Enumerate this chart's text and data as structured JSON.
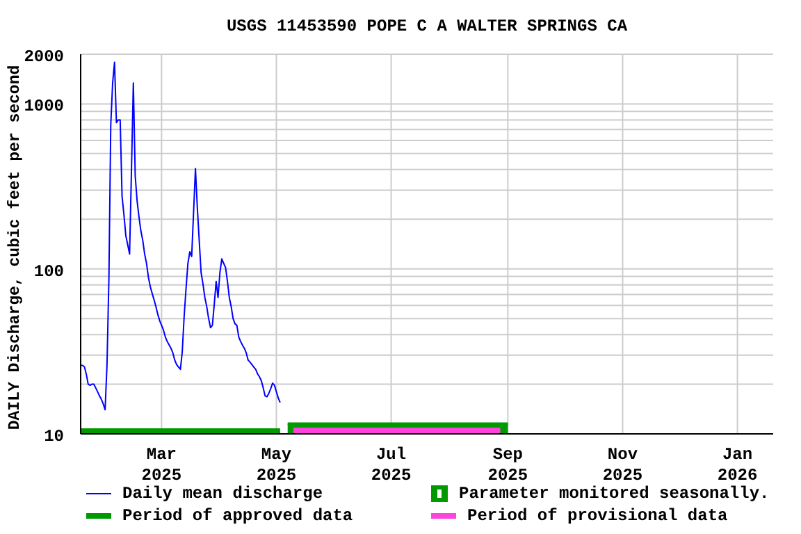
{
  "chart_data": {
    "type": "line",
    "title": "USGS 11453590 POPE C A WALTER SPRINGS CA",
    "ylabel": "DAILY Discharge, cubic feet per second",
    "log": "y",
    "grid": true,
    "legend": "bottom",
    "marker": "none",
    "xlim": [
      "2025-01-17",
      "2026-01-20"
    ],
    "xticks": [
      {
        "value": "2025-03-01",
        "label": "Mar\n2025"
      },
      {
        "value": "2025-05-01",
        "label": "May\n2025"
      },
      {
        "value": "2025-07-01",
        "label": "Jul\n2025"
      },
      {
        "value": "2025-09-01",
        "label": "Sep\n2025"
      },
      {
        "value": "2025-11-01",
        "label": "Nov\n2025"
      },
      {
        "value": "2026-01-01",
        "label": "Jan\n2026"
      }
    ],
    "ylim": [
      10,
      2000
    ],
    "yticks": [
      10,
      {
        "value": 20,
        "label": null
      },
      {
        "value": 30,
        "label": null
      },
      {
        "value": 40,
        "label": null
      },
      {
        "value": 50,
        "label": null
      },
      {
        "value": 60,
        "label": null
      },
      {
        "value": 70,
        "label": null
      },
      {
        "value": 80,
        "label": null
      },
      {
        "value": 90,
        "label": null
      },
      100,
      {
        "value": 200,
        "label": null
      },
      {
        "value": 300,
        "label": null
      },
      {
        "value": 400,
        "label": null
      },
      {
        "value": 500,
        "label": null
      },
      {
        "value": 600,
        "label": null
      },
      {
        "value": 700,
        "label": null
      },
      {
        "value": 800,
        "label": null
      },
      {
        "value": 900,
        "label": null
      },
      1000,
      2000
    ],
    "series": [
      {
        "name": "Daily mean discharge",
        "color": "#0000ff",
        "x": [
          "2025-01-17",
          "2025-01-18",
          "2025-01-19",
          "2025-01-20",
          "2025-01-21",
          "2025-01-22",
          "2025-01-23",
          "2025-01-24",
          "2025-01-25",
          "2025-01-26",
          "2025-01-27",
          "2025-01-28",
          "2025-01-29",
          "2025-01-30",
          "2025-01-31",
          "2025-02-01",
          "2025-02-02",
          "2025-02-03",
          "2025-02-04",
          "2025-02-05",
          "2025-02-06",
          "2025-02-07",
          "2025-02-08",
          "2025-02-09",
          "2025-02-10",
          "2025-02-11",
          "2025-02-12",
          "2025-02-13",
          "2025-02-14",
          "2025-02-15",
          "2025-02-16",
          "2025-02-17",
          "2025-02-18",
          "2025-02-19",
          "2025-02-20",
          "2025-02-21",
          "2025-02-22",
          "2025-02-23",
          "2025-02-24",
          "2025-02-25",
          "2025-02-26",
          "2025-02-27",
          "2025-02-28",
          "2025-03-01",
          "2025-03-02",
          "2025-03-03",
          "2025-03-04",
          "2025-03-05",
          "2025-03-06",
          "2025-03-07",
          "2025-03-08",
          "2025-03-09",
          "2025-03-10",
          "2025-03-11",
          "2025-03-12",
          "2025-03-13",
          "2025-03-14",
          "2025-03-15",
          "2025-03-16",
          "2025-03-17",
          "2025-03-18",
          "2025-03-19",
          "2025-03-20",
          "2025-03-21",
          "2025-03-22",
          "2025-03-23",
          "2025-03-24",
          "2025-03-25",
          "2025-03-26",
          "2025-03-27",
          "2025-03-28",
          "2025-03-29",
          "2025-03-30",
          "2025-03-31",
          "2025-04-01",
          "2025-04-02",
          "2025-04-03",
          "2025-04-04",
          "2025-04-05",
          "2025-04-06",
          "2025-04-07",
          "2025-04-08",
          "2025-04-09",
          "2025-04-10",
          "2025-04-11",
          "2025-04-12",
          "2025-04-13",
          "2025-04-14",
          "2025-04-15",
          "2025-04-16",
          "2025-04-17",
          "2025-04-18",
          "2025-04-19",
          "2025-04-20",
          "2025-04-21",
          "2025-04-22",
          "2025-04-23",
          "2025-04-24",
          "2025-04-25",
          "2025-04-26",
          "2025-04-27",
          "2025-04-28",
          "2025-04-29",
          "2025-04-30",
          "2025-05-01",
          "2025-05-02",
          "2025-05-03"
        ],
        "values": [
          26,
          26,
          25.5,
          23,
          20,
          19.7,
          20,
          20,
          19,
          18,
          17,
          16.2,
          15.2,
          14,
          26.3,
          86,
          748,
          1340,
          1790,
          770,
          800,
          800,
          276,
          213,
          159,
          140,
          123,
          395,
          1340,
          365,
          258,
          206,
          170,
          149,
          123,
          108,
          89,
          78,
          71,
          65,
          59,
          53,
          48.5,
          45.5,
          42.6,
          38.7,
          36.3,
          34.6,
          33,
          30.9,
          28,
          26.3,
          25.4,
          24.6,
          31.5,
          51.7,
          76,
          108,
          127,
          119,
          220,
          405,
          235,
          149,
          95,
          81,
          67,
          59,
          50,
          44,
          45.5,
          61,
          84,
          67,
          95,
          115,
          108,
          102,
          84,
          67,
          59,
          50,
          46.5,
          45.5,
          38.7,
          36.3,
          34.5,
          33,
          30.9,
          28,
          27.2,
          26.3,
          25.4,
          24.6,
          23.1,
          22.2,
          21,
          19,
          17,
          16.8,
          17.6,
          18.8,
          20.3,
          19.7,
          18,
          16.5,
          15.5
        ]
      },
      {
        "name": "Parameter monitored seasonally.",
        "type": "area",
        "color": "#009900",
        "x": [
          "2025-05-07",
          "2025-09-01"
        ],
        "values": [
          11.5,
          11.5
        ]
      },
      {
        "name": "Period of approved data",
        "color": "#009900",
        "x": [
          "2025-01-17",
          "2025-05-03"
        ],
        "values": [
          10.4,
          10.4
        ]
      },
      {
        "name": "Period of provisional data",
        "color": "#ff44dd",
        "x": [
          "2025-05-10",
          "2025-08-28"
        ],
        "values": [
          10.5,
          10.5
        ]
      }
    ]
  }
}
